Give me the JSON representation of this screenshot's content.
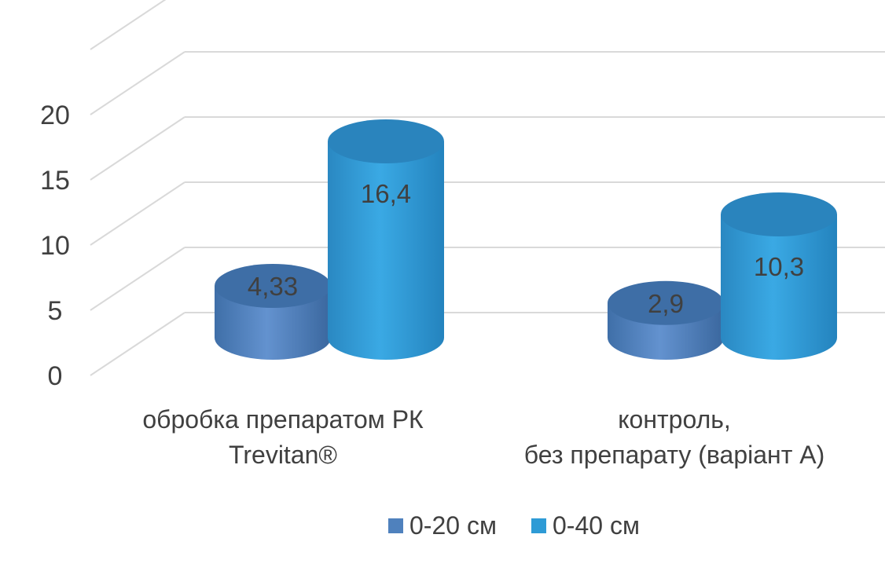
{
  "chart_data": {
    "type": "bar",
    "style": "3d-cylinder",
    "categories": [
      [
        "обробка препаратом РК",
        "Trevitan®"
      ],
      [
        "контроль,",
        "без препарату (варіант А)"
      ]
    ],
    "series": [
      {
        "name": "0-20 см",
        "values": [
          4.33,
          2.9
        ],
        "labels": [
          "4,33",
          "2,9"
        ],
        "color": "#4F81BD"
      },
      {
        "name": "0-40 см",
        "values": [
          16.4,
          10.3
        ],
        "labels": [
          "16,4",
          "10,3"
        ],
        "color": "#2E9BD6"
      }
    ],
    "yticks": [
      "0",
      "5",
      "10",
      "15",
      "20"
    ],
    "ylim": [
      0,
      25
    ],
    "grid": true,
    "legend_position": "bottom",
    "xlabel": "",
    "ylabel": "",
    "title": ""
  }
}
